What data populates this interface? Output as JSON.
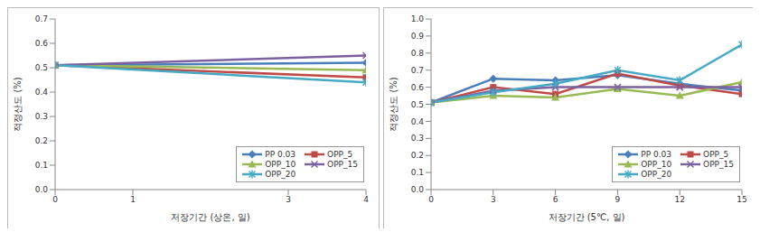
{
  "chart_data": [
    {
      "type": "line",
      "x_label": "저장기간 (상온, 일)",
      "y_label": "적정산도 (%)",
      "x": [
        0,
        4
      ],
      "xlim": [
        0,
        4
      ],
      "xticks": [
        0,
        1,
        3,
        4
      ],
      "ylim": [
        0,
        0.7
      ],
      "yticks": [
        {
          "value": 0,
          "label": "0.0"
        },
        0.1,
        0.2,
        0.3,
        0.4,
        0.5,
        0.6,
        0.7
      ],
      "grid": false,
      "legend": "lower right",
      "series": [
        {
          "name": "PP 0.03",
          "color": "#4a7ebb",
          "marker": "diamond",
          "values": [
            0.51,
            0.52
          ]
        },
        {
          "name": "OPP_5",
          "color": "#be4b48",
          "marker": "square",
          "values": [
            0.51,
            0.46
          ]
        },
        {
          "name": "OPP_10",
          "color": "#98b954",
          "marker": "triangle",
          "values": [
            0.51,
            0.49
          ]
        },
        {
          "name": "OPP_15",
          "color": "#7d60a0",
          "marker": "x",
          "values": [
            0.51,
            0.55
          ]
        },
        {
          "name": "OPP_20",
          "color": "#46aac5",
          "marker": "star",
          "values": [
            0.51,
            0.44
          ]
        }
      ]
    },
    {
      "type": "line",
      "x_label": "저장기간 (5℃, 일)",
      "y_label": "적정산도 (%)",
      "x": [
        0,
        3,
        6,
        9,
        12,
        15
      ],
      "xlim": [
        0,
        15
      ],
      "xticks": [
        0,
        3,
        6,
        9,
        12,
        15
      ],
      "ylim": [
        0,
        1
      ],
      "yticks": [
        {
          "value": 0,
          "label": "0.0"
        },
        0.1,
        0.2,
        0.3,
        0.4,
        0.5,
        0.6,
        0.7,
        0.8,
        0.9,
        {
          "value": 1,
          "label": "1.0"
        }
      ],
      "grid": false,
      "legend": "lower right",
      "series": [
        {
          "name": "PP 0.03",
          "color": "#4a7ebb",
          "marker": "diamond",
          "values": [
            0.51,
            0.65,
            0.64,
            0.67,
            0.62,
            0.58
          ]
        },
        {
          "name": "OPP_5",
          "color": "#be4b48",
          "marker": "square",
          "values": [
            0.51,
            0.6,
            0.56,
            0.68,
            0.61,
            0.56
          ]
        },
        {
          "name": "OPP_10",
          "color": "#98b954",
          "marker": "triangle",
          "values": [
            0.51,
            0.55,
            0.54,
            0.59,
            0.55,
            0.63
          ]
        },
        {
          "name": "OPP_15",
          "color": "#7d60a0",
          "marker": "x",
          "values": [
            0.51,
            0.58,
            0.6,
            0.6,
            0.6,
            0.6
          ]
        },
        {
          "name": "OPP_20",
          "color": "#46aac5",
          "marker": "star",
          "values": [
            0.51,
            0.57,
            0.62,
            0.7,
            0.64,
            0.85
          ]
        }
      ]
    }
  ]
}
